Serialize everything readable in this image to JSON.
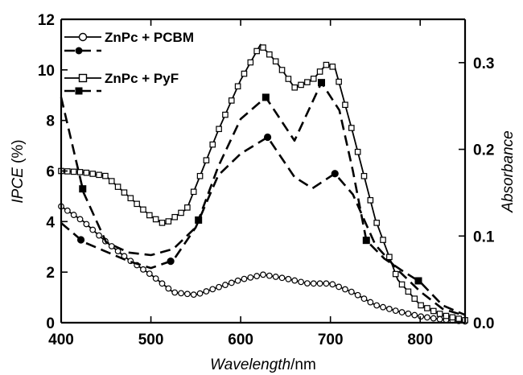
{
  "chart_data": {
    "type": "line",
    "x_axis": {
      "label_italic": "Wavelength",
      "label_unit": "/nm",
      "range": [
        400,
        850
      ],
      "ticks": [
        400,
        500,
        600,
        700,
        800
      ],
      "tick_labels": [
        "400",
        "500",
        "600",
        "700",
        "800"
      ]
    },
    "y_left": {
      "label_italic": "IPCE",
      "label_unit": " (%)",
      "range": [
        0,
        12
      ],
      "ticks": [
        0,
        2,
        4,
        6,
        8,
        10,
        12
      ],
      "tick_labels": [
        "0",
        "2",
        "4",
        "6",
        "8",
        "10",
        "12"
      ]
    },
    "y_right": {
      "label": "Absorbance",
      "range": [
        0,
        0.35
      ],
      "ticks": [
        0,
        0.1,
        0.2,
        0.3
      ],
      "tick_labels": [
        "0.0",
        "0.1",
        "0.2",
        "0.3"
      ]
    },
    "legend": [
      {
        "label": "ZnPc + PCBM",
        "marker": "circle"
      },
      {
        "label": "ZnPc + PyF",
        "marker": "square"
      }
    ],
    "legend_position": "top-left",
    "series": [
      {
        "name": "ZnPc + PCBM",
        "kind": "IPCE",
        "axis": "left",
        "style": "solid",
        "marker": "open-circle",
        "x": [
          400,
          425,
          450,
          475,
          500,
          525,
          550,
          575,
          600,
          625,
          650,
          675,
          700,
          725,
          750,
          775,
          800,
          825,
          850
        ],
        "y": [
          4.6,
          4.0,
          3.2,
          2.5,
          1.9,
          1.2,
          1.1,
          1.4,
          1.7,
          1.9,
          1.75,
          1.55,
          1.55,
          1.2,
          0.7,
          0.45,
          0.25,
          0.12,
          0.05
        ]
      },
      {
        "name": "ZnPc + PCBM",
        "kind": "Absorbance",
        "axis": "right",
        "style": "dashed",
        "marker": "filled-circle",
        "x": [
          400,
          425,
          450,
          475,
          500,
          525,
          550,
          575,
          600,
          630,
          660,
          680,
          705,
          725,
          750,
          775,
          800,
          825,
          850
        ],
        "y": [
          0.115,
          0.093,
          0.082,
          0.071,
          0.063,
          0.072,
          0.11,
          0.17,
          0.195,
          0.214,
          0.168,
          0.155,
          0.172,
          0.148,
          0.09,
          0.061,
          0.036,
          0.016,
          0.008
        ],
        "markers_at": [
          422,
          522,
          630,
          705
        ]
      },
      {
        "name": "ZnPc + PyF",
        "kind": "IPCE",
        "axis": "left",
        "style": "solid",
        "marker": "open-square",
        "x": [
          400,
          425,
          450,
          475,
          500,
          515,
          540,
          575,
          600,
          622,
          640,
          660,
          680,
          695,
          705,
          725,
          750,
          775,
          800,
          825,
          850
        ],
        "y": [
          6.0,
          5.95,
          5.8,
          5.0,
          4.2,
          3.9,
          4.5,
          7.6,
          9.6,
          11.0,
          10.3,
          9.3,
          9.6,
          10.2,
          10.1,
          7.5,
          4.1,
          1.7,
          0.7,
          0.3,
          0.1
        ]
      },
      {
        "name": "ZnPc + PyF",
        "kind": "Absorbance",
        "axis": "right",
        "style": "dashed",
        "marker": "filled-square",
        "x": [
          400,
          425,
          450,
          475,
          500,
          525,
          550,
          575,
          600,
          628,
          660,
          690,
          710,
          725,
          740,
          760,
          780,
          800,
          825,
          850
        ],
        "y": [
          0.26,
          0.15,
          0.093,
          0.081,
          0.078,
          0.085,
          0.11,
          0.18,
          0.235,
          0.26,
          0.21,
          0.277,
          0.245,
          0.175,
          0.095,
          0.074,
          0.06,
          0.047,
          0.02,
          0.009
        ],
        "markers_at": [
          424,
          553,
          628,
          690,
          740,
          798
        ]
      }
    ]
  }
}
